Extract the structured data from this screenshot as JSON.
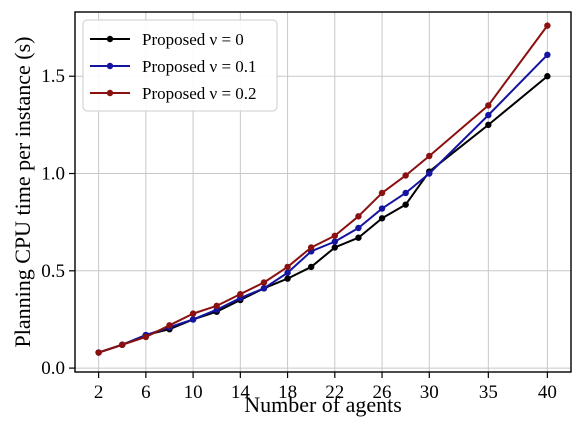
{
  "chart_data": {
    "type": "line",
    "title": "",
    "xlabel": "Number of agents",
    "ylabel": "Planning CPU time per instance (s)",
    "x_ticks": [
      2,
      6,
      10,
      14,
      18,
      22,
      26,
      30,
      35,
      40
    ],
    "y_ticks": [
      "0.0",
      "0.5",
      "1.0",
      "1.5"
    ],
    "y_tick_values": [
      0,
      0.5,
      1.0,
      1.5
    ],
    "xlim": [
      0,
      42
    ],
    "ylim": [
      -0.02,
      1.83
    ],
    "grid": true,
    "legend_position": "top-left",
    "x": [
      2,
      4,
      6,
      8,
      10,
      12,
      14,
      16,
      18,
      20,
      22,
      24,
      26,
      28,
      30,
      35,
      40
    ],
    "series": [
      {
        "name": "Proposed ν = 0",
        "color": "#000000",
        "values": [
          0.08,
          0.12,
          0.17,
          0.2,
          0.25,
          0.29,
          0.35,
          0.41,
          0.46,
          0.52,
          0.62,
          0.67,
          0.77,
          0.84,
          1.01,
          1.25,
          1.5
        ]
      },
      {
        "name": "Proposed ν = 0.1",
        "color": "#1414a0",
        "values": [
          0.08,
          0.12,
          0.17,
          0.21,
          0.25,
          0.3,
          0.36,
          0.41,
          0.49,
          0.6,
          0.65,
          0.72,
          0.82,
          0.9,
          1.0,
          1.3,
          1.61
        ]
      },
      {
        "name": "Proposed ν = 0.2",
        "color": "#8b1010",
        "values": [
          0.08,
          0.12,
          0.16,
          0.22,
          0.28,
          0.32,
          0.38,
          0.44,
          0.52,
          0.62,
          0.68,
          0.78,
          0.9,
          0.99,
          1.09,
          1.35,
          1.76
        ]
      }
    ]
  }
}
